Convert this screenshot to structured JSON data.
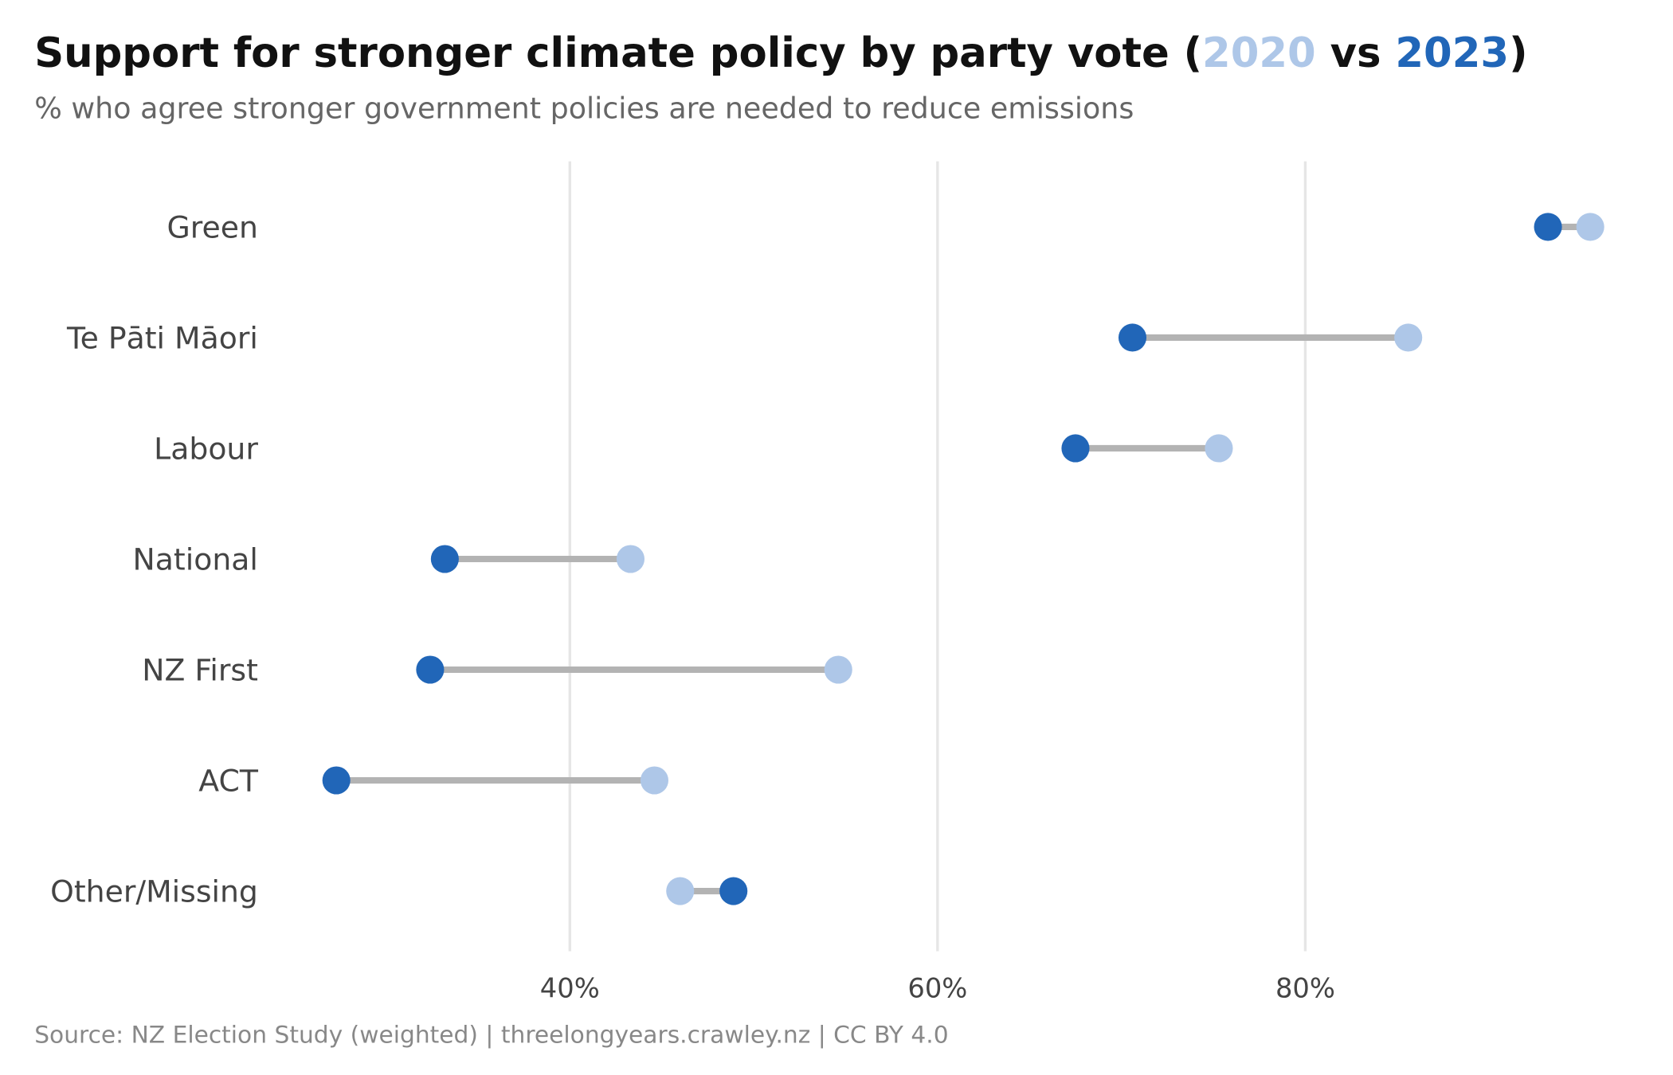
{
  "chart_data": {
    "type": "dumbbell",
    "title": "Support for stronger climate policy by party vote",
    "title_parts": {
      "open": "(",
      "year_a": "2020",
      "vs": " vs ",
      "year_b": "2023",
      "close": ")"
    },
    "subtitle": "% who agree stronger government policies are needed to reduce emissions",
    "source": "Source: NZ Election Study (weighted) | threelongyears.crawley.nz | CC BY 4.0",
    "categories": [
      "Green",
      "Te Pāti Māori",
      "Labour",
      "National",
      "NZ First",
      "ACT",
      "Other/Missing"
    ],
    "series": [
      {
        "name": "2020",
        "color": "#aec7e8",
        "values": [
          95.5,
          85.6,
          75.3,
          43.3,
          54.6,
          44.6,
          46.0
        ]
      },
      {
        "name": "2023",
        "color": "#2166b8",
        "values": [
          93.2,
          70.6,
          67.5,
          33.2,
          32.4,
          27.3,
          48.9
        ]
      }
    ],
    "connector_color": "#b3b3b3",
    "x_ticks": [
      40,
      60,
      80
    ],
    "x_tick_labels": [
      "40%",
      "60%",
      "80%"
    ],
    "xlabel": "",
    "ylabel": "",
    "grid": "vertical"
  }
}
